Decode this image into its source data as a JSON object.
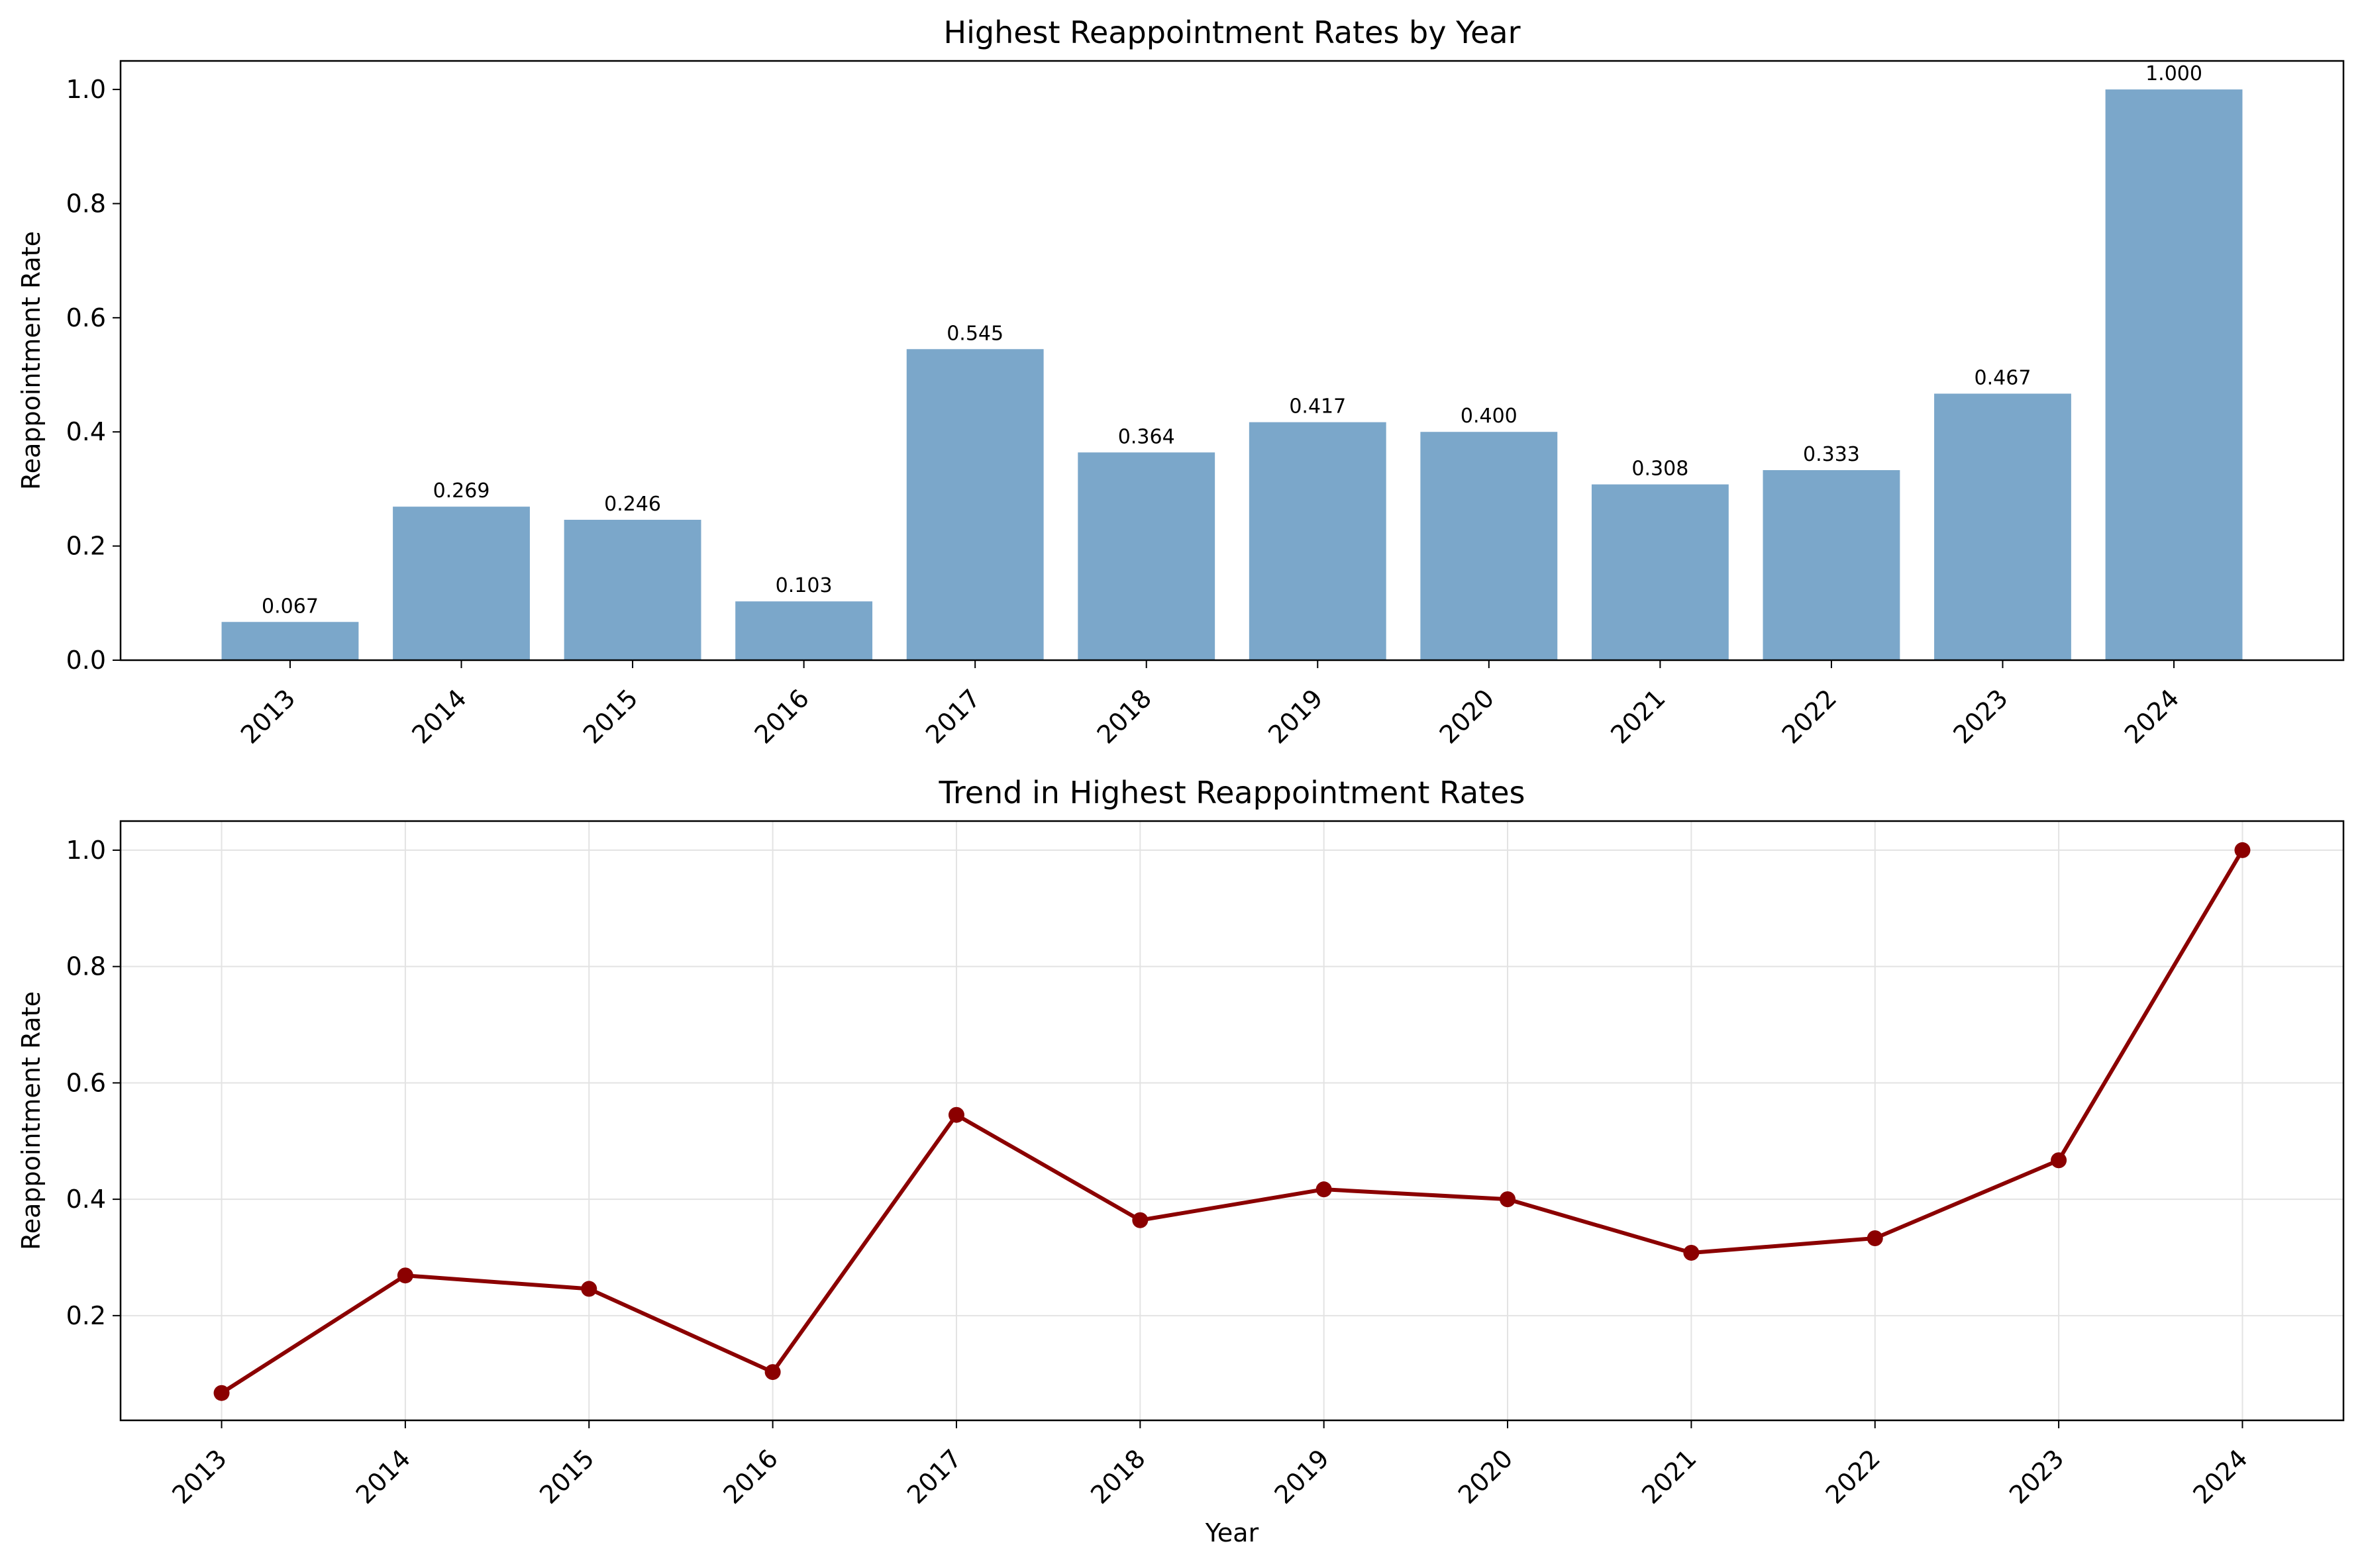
{
  "chart_data": [
    {
      "type": "bar",
      "title": "Highest Reappointment Rates by Year",
      "xlabel": "",
      "ylabel": "Reappointment Rate",
      "categories": [
        "2013",
        "2014",
        "2015",
        "2016",
        "2017",
        "2018",
        "2019",
        "2020",
        "2021",
        "2022",
        "2023",
        "2024"
      ],
      "values": [
        0.067,
        0.269,
        0.246,
        0.103,
        0.545,
        0.364,
        0.417,
        0.4,
        0.308,
        0.333,
        0.467,
        1.0
      ],
      "data_labels": [
        "0.067",
        "0.269",
        "0.246",
        "0.103",
        "0.545",
        "0.364",
        "0.417",
        "0.400",
        "0.308",
        "0.333",
        "0.467",
        "1.000"
      ],
      "ylim": [
        0,
        1.05
      ],
      "yticks": [
        0.0,
        0.2,
        0.4,
        0.6,
        0.8,
        1.0
      ],
      "ytick_labels": [
        "0.0",
        "0.2",
        "0.4",
        "0.6",
        "0.8",
        "1.0"
      ],
      "grid": false,
      "color": "#7ba7ca"
    },
    {
      "type": "line",
      "title": "Trend in Highest Reappointment Rates",
      "xlabel": "Year",
      "ylabel": "Reappointment Rate",
      "x": [
        "2013",
        "2014",
        "2015",
        "2016",
        "2017",
        "2018",
        "2019",
        "2020",
        "2021",
        "2022",
        "2023",
        "2024"
      ],
      "values": [
        0.067,
        0.269,
        0.246,
        0.103,
        0.545,
        0.364,
        0.417,
        0.4,
        0.308,
        0.333,
        0.467,
        1.0
      ],
      "ylim": [
        0.02,
        1.05
      ],
      "yticks": [
        0.2,
        0.4,
        0.6,
        0.8,
        1.0
      ],
      "ytick_labels": [
        "0.2",
        "0.4",
        "0.6",
        "0.8",
        "1.0"
      ],
      "grid": true,
      "markers": true,
      "color": "#8b0000"
    }
  ]
}
